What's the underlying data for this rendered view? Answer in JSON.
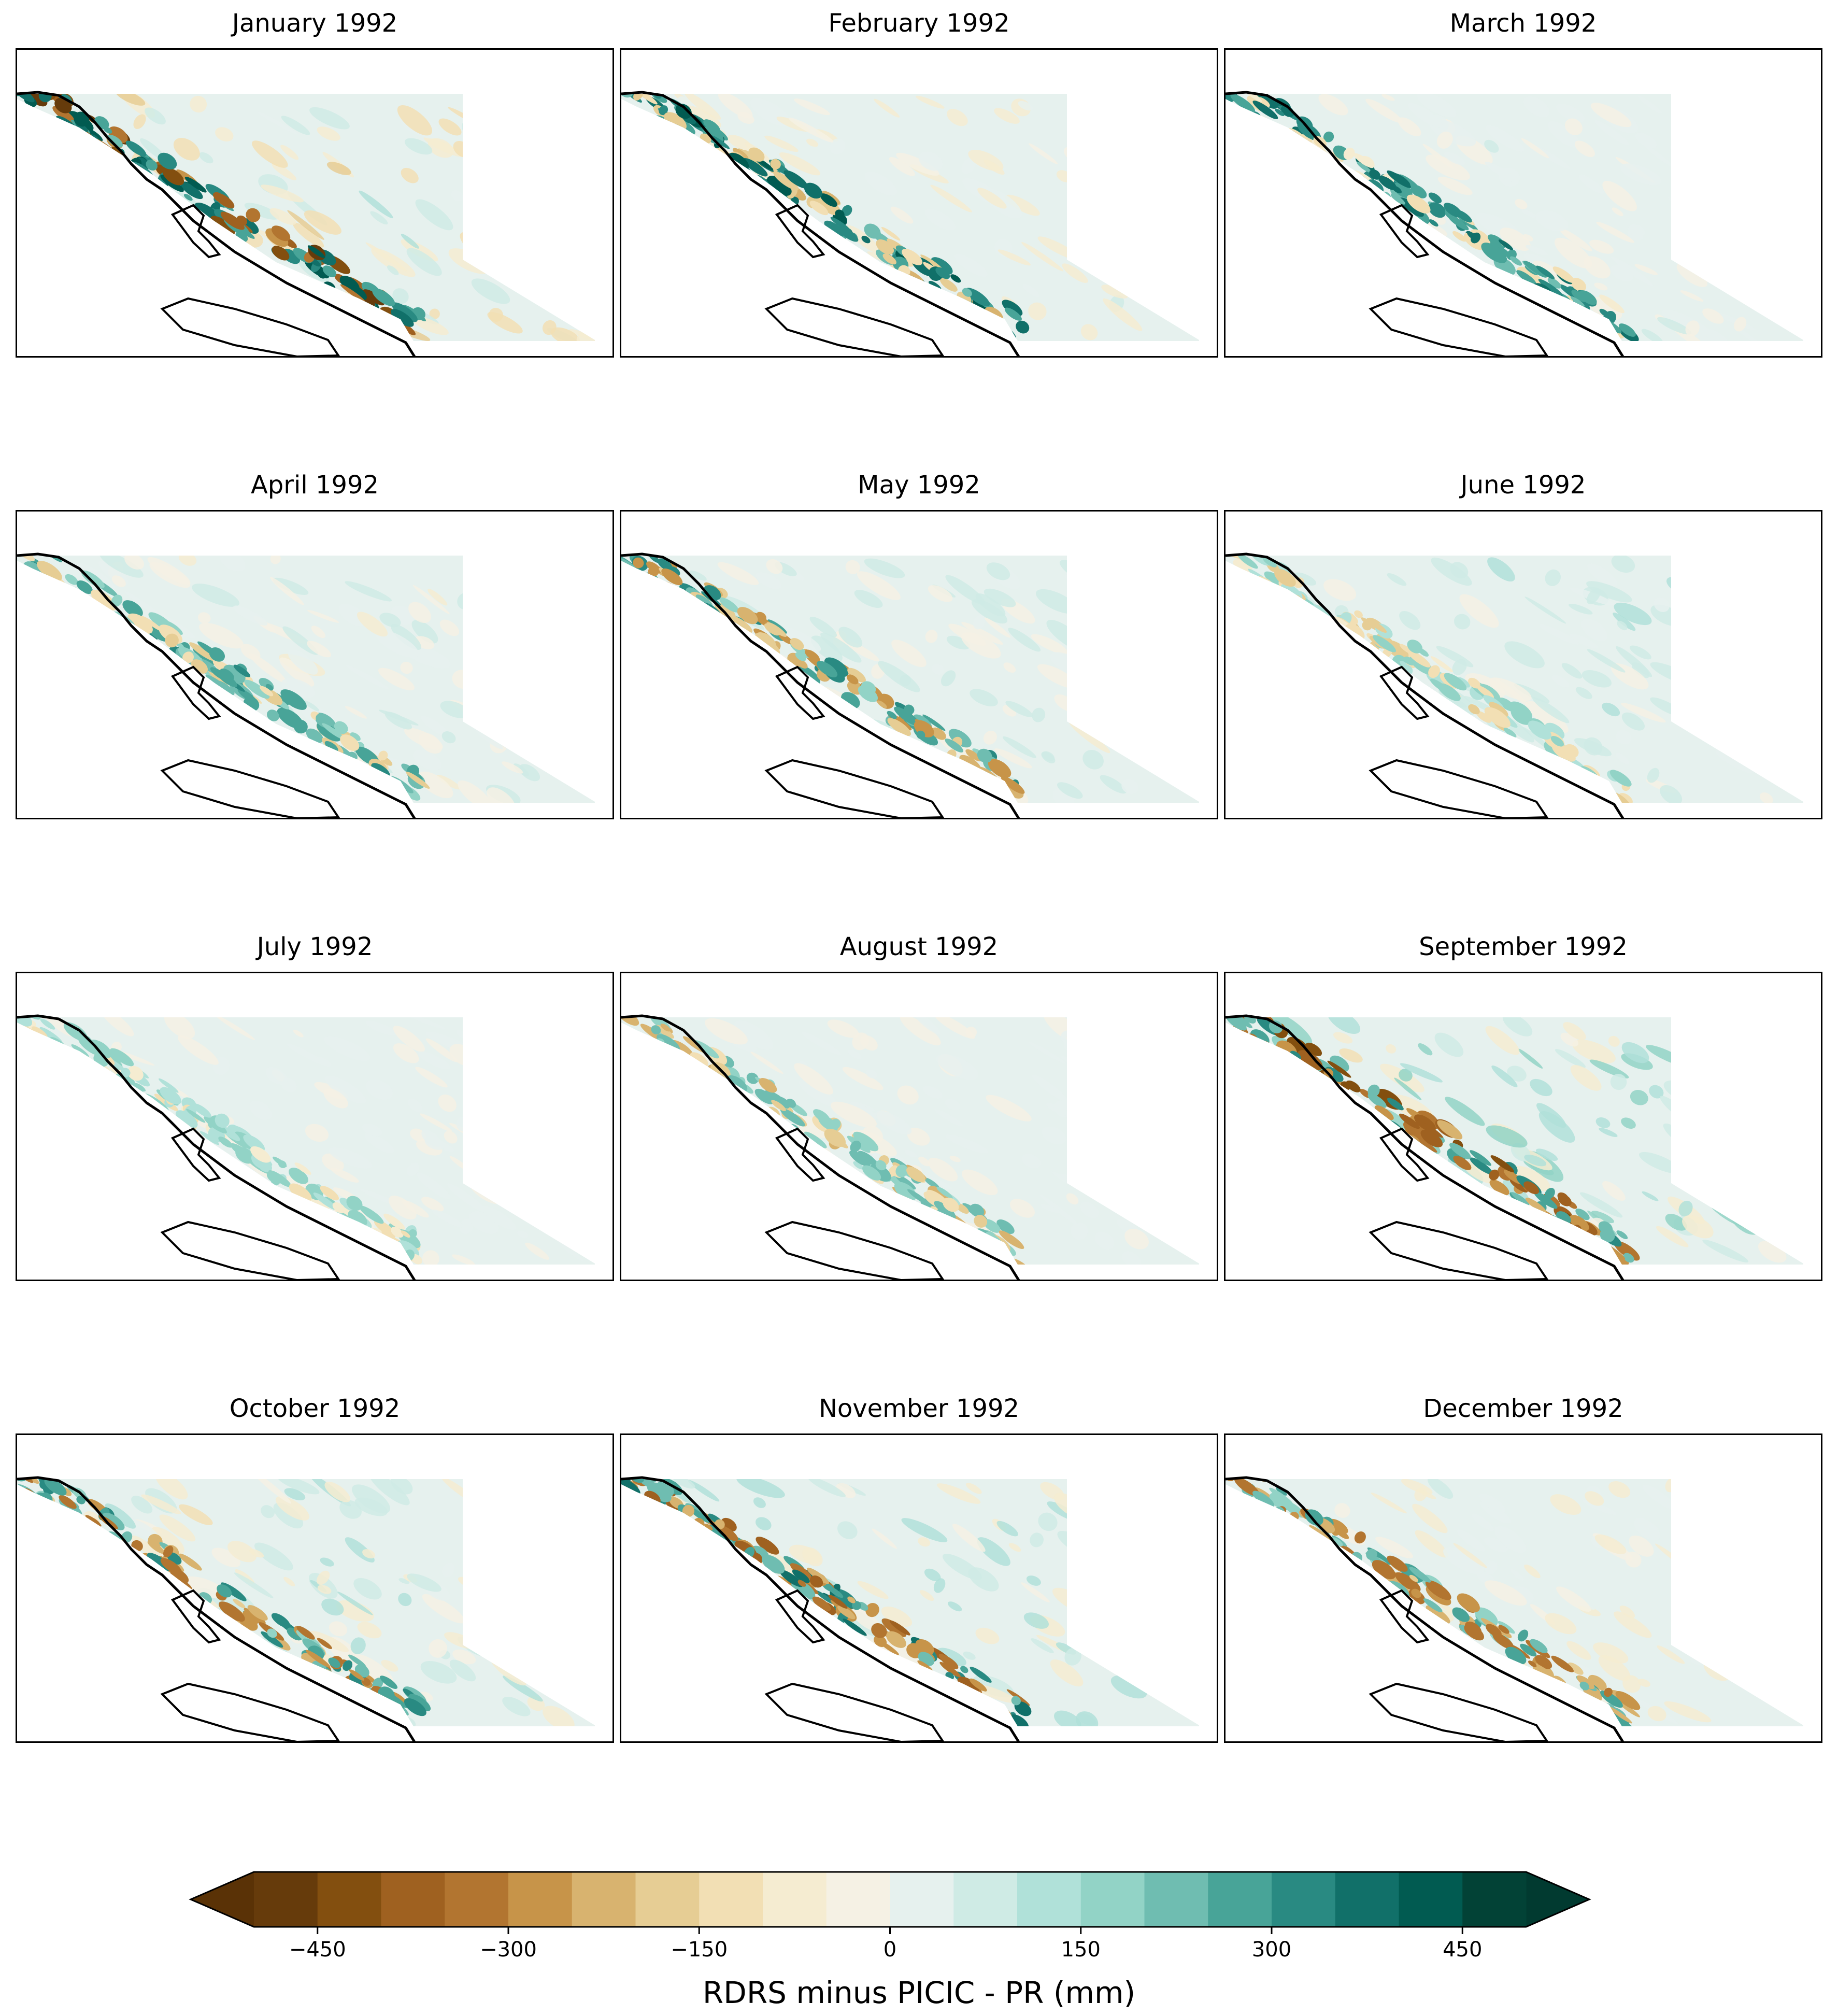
{
  "chart_data": {
    "type": "heatmap",
    "layout": "4 x 3 grid of monthly maps over British Columbia",
    "panels": [
      {
        "title": "January 1992",
        "pattern": "strong mixed: deep brown inland coast, dark teal coastal fjords"
      },
      {
        "title": "February 1992",
        "pattern": "teal along coast, mild brown patches"
      },
      {
        "title": "March 1992",
        "pattern": "teal coast, near-zero interior"
      },
      {
        "title": "April 1992",
        "pattern": "mild teal coast, near-zero interior"
      },
      {
        "title": "May 1992",
        "pattern": "brown and teal coast, light teal interior"
      },
      {
        "title": "June 1992",
        "pattern": "near-zero, light teal interior"
      },
      {
        "title": "July 1992",
        "pattern": "near-zero, light beige interior"
      },
      {
        "title": "August 1992",
        "pattern": "near-zero, slight teal along coast"
      },
      {
        "title": "September 1992",
        "pattern": "strong brown coast, teal interior streaks"
      },
      {
        "title": "October 1992",
        "pattern": "brown coast, teal inland streaks"
      },
      {
        "title": "November 1992",
        "pattern": "strong brown coast, teal inland"
      },
      {
        "title": "December 1992",
        "pattern": "brown coast, teal coastal edge"
      }
    ],
    "colorbar": {
      "label": "RDRS minus PICIC - PR (mm)",
      "levels": [
        -500,
        -450,
        -400,
        -350,
        -300,
        -250,
        -200,
        -150,
        -100,
        -50,
        0,
        50,
        100,
        150,
        200,
        250,
        300,
        350,
        400,
        450,
        500
      ],
      "tick_values": [
        -450,
        -300,
        -150,
        0,
        150,
        300,
        450
      ],
      "tick_labels": [
        "−450",
        "−300",
        "−150",
        "0",
        "150",
        "300",
        "450"
      ],
      "extend": "both",
      "colors": [
        "#663b0b",
        "#834f0f",
        "#9f6120",
        "#b27530",
        "#c79449",
        "#d8b36f",
        "#e6cd94",
        "#f2dfb4",
        "#f5ecd1",
        "#f5f1e4",
        "#e6f1ee",
        "#cfebe5",
        "#b0e1d9",
        "#92d3c6",
        "#6fbdb1",
        "#48a498",
        "#298a82",
        "#117069",
        "#015b51",
        "#024236"
      ],
      "under_color": "#5a3206",
      "over_color": "#013a30",
      "cmap": "BrBG"
    }
  }
}
